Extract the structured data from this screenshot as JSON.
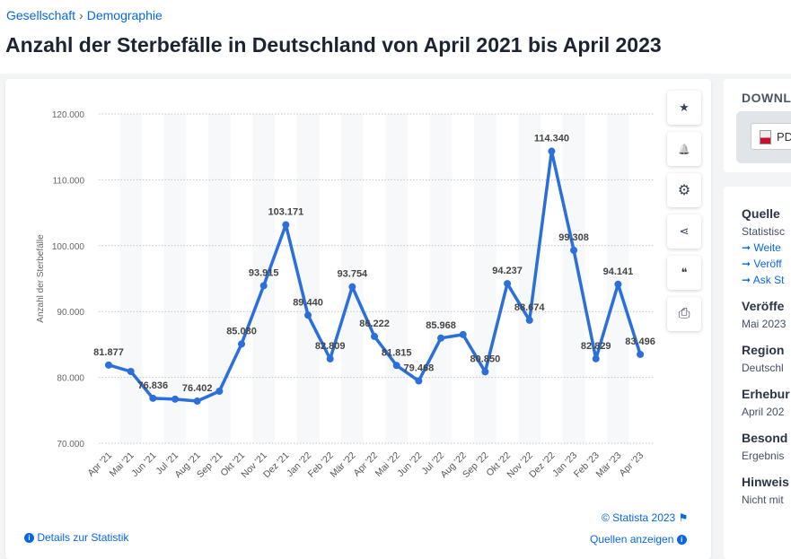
{
  "breadcrumb": {
    "items": [
      "Gesellschaft",
      "Demographie"
    ],
    "separator": "›"
  },
  "title": "Anzahl der Sterbefälle in Deutschland von April 2021 bis April 2023",
  "toolbar": [
    {
      "icon": "star-icon",
      "glyph": "★"
    },
    {
      "icon": "bell-icon",
      "glyph": "🔔"
    },
    {
      "icon": "gear-icon",
      "glyph": "⚙"
    },
    {
      "icon": "share-icon",
      "glyph": "⋖"
    },
    {
      "icon": "quote-icon",
      "glyph": "❝"
    },
    {
      "icon": "print-icon",
      "glyph": "⎙"
    }
  ],
  "footer": {
    "copyright": "© Statista 2023",
    "details": "Details zur Statistik",
    "sources": "Quellen anzeigen"
  },
  "download": {
    "title": "DOWNL",
    "pdf": "PD"
  },
  "info": {
    "source_label": "Quelle",
    "source_value": "Statistisc",
    "links": [
      "Weite",
      "Veröff",
      "Ask St"
    ],
    "published_label": "Veröffe",
    "published_value": "Mai 2023",
    "region_label": "Region",
    "region_value": "Deutschl",
    "survey_label": "Erhebur",
    "survey_value": "April 202",
    "special_label": "Besond",
    "special_value": "Ergebnis",
    "note_label": "Hinweis",
    "note_value": "Nicht mit"
  },
  "colors": {
    "line": "#2a6fdb",
    "accent": "#0666e5"
  },
  "chart_data": {
    "type": "line",
    "ylabel": "Anzahl der Sterbefälle",
    "ylim": [
      70000,
      120000
    ],
    "yticks": [
      70000,
      80000,
      90000,
      100000,
      110000,
      120000
    ],
    "ytick_labels": [
      "70.000",
      "80.000",
      "90.000",
      "100.000",
      "110.000",
      "120.000"
    ],
    "grid": true,
    "categories": [
      "Apr '21",
      "Mai '21",
      "Jun '21",
      "Jul '21",
      "Aug '21",
      "Sep '21",
      "Okt '21",
      "Nov '21",
      "Dez '21",
      "Jan '22",
      "Feb '22",
      "Mär '22",
      "Apr '22",
      "Mai '22",
      "Jun '22",
      "Jul '22",
      "Aug '22",
      "Sep '22",
      "Okt '22",
      "Nov '22",
      "Dez '22",
      "Jan '23",
      "Feb '23",
      "Mär '23",
      "Apr '23"
    ],
    "values": [
      81877,
      80900,
      76836,
      76700,
      76402,
      77900,
      85080,
      93915,
      103171,
      89440,
      82809,
      93754,
      86222,
      81815,
      79468,
      85968,
      86500,
      80850,
      94237,
      88674,
      114340,
      99308,
      82829,
      94141,
      83496
    ],
    "labels": [
      "81.877",
      "",
      "76.836",
      "",
      "76.402",
      "",
      "85.080",
      "93.915",
      "103.171",
      "89.440",
      "82.809",
      "93.754",
      "86.222",
      "81.815",
      "79.468",
      "85.968",
      "",
      "80.850",
      "94.237",
      "88.674",
      "114.340",
      "99.308",
      "82.829",
      "94.141",
      "83.496"
    ]
  }
}
